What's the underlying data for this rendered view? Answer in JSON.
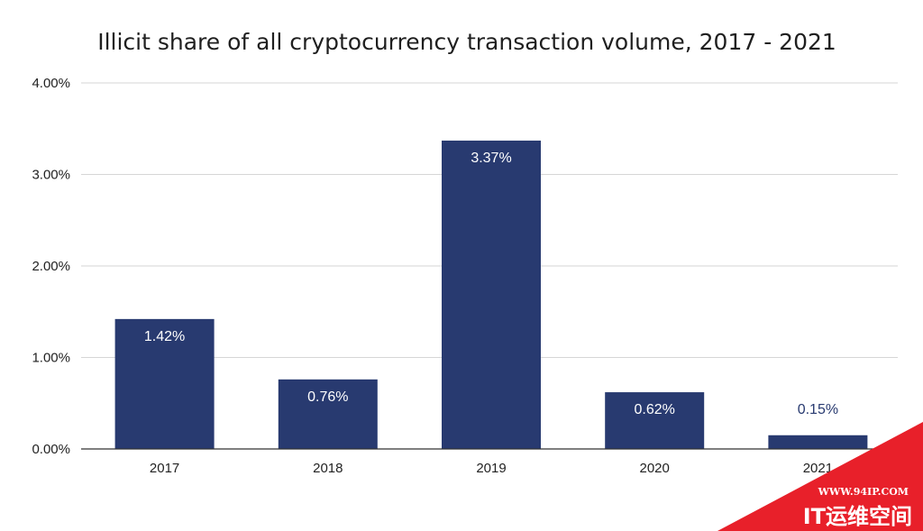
{
  "chart_data": {
    "type": "bar",
    "title": "Illicit share of all cryptocurrency transaction volume, 2017 - 2021",
    "xlabel": "",
    "ylabel": "",
    "categories": [
      "2017",
      "2018",
      "2019",
      "2020",
      "2021"
    ],
    "values": [
      1.42,
      0.76,
      3.37,
      0.62,
      0.15
    ],
    "data_labels": [
      "1.42%",
      "0.76%",
      "3.37%",
      "0.62%",
      "0.15%"
    ],
    "ylim": [
      0,
      4
    ],
    "y_ticks": [
      {
        "value": 0,
        "label": "0.00%"
      },
      {
        "value": 1,
        "label": "1.00%"
      },
      {
        "value": 2,
        "label": "2.00%"
      },
      {
        "value": 3,
        "label": "3.00%"
      },
      {
        "value": 4,
        "label": "4.00%"
      }
    ],
    "grid": true,
    "legend": "none",
    "bar_color": "#283a70",
    "label_color_inside": "#ffffff",
    "label_color_outside": "#283a70"
  },
  "watermark": {
    "url": "WWW.94IP.COM",
    "brand": "IT运维空间",
    "color": "#e8202a"
  }
}
